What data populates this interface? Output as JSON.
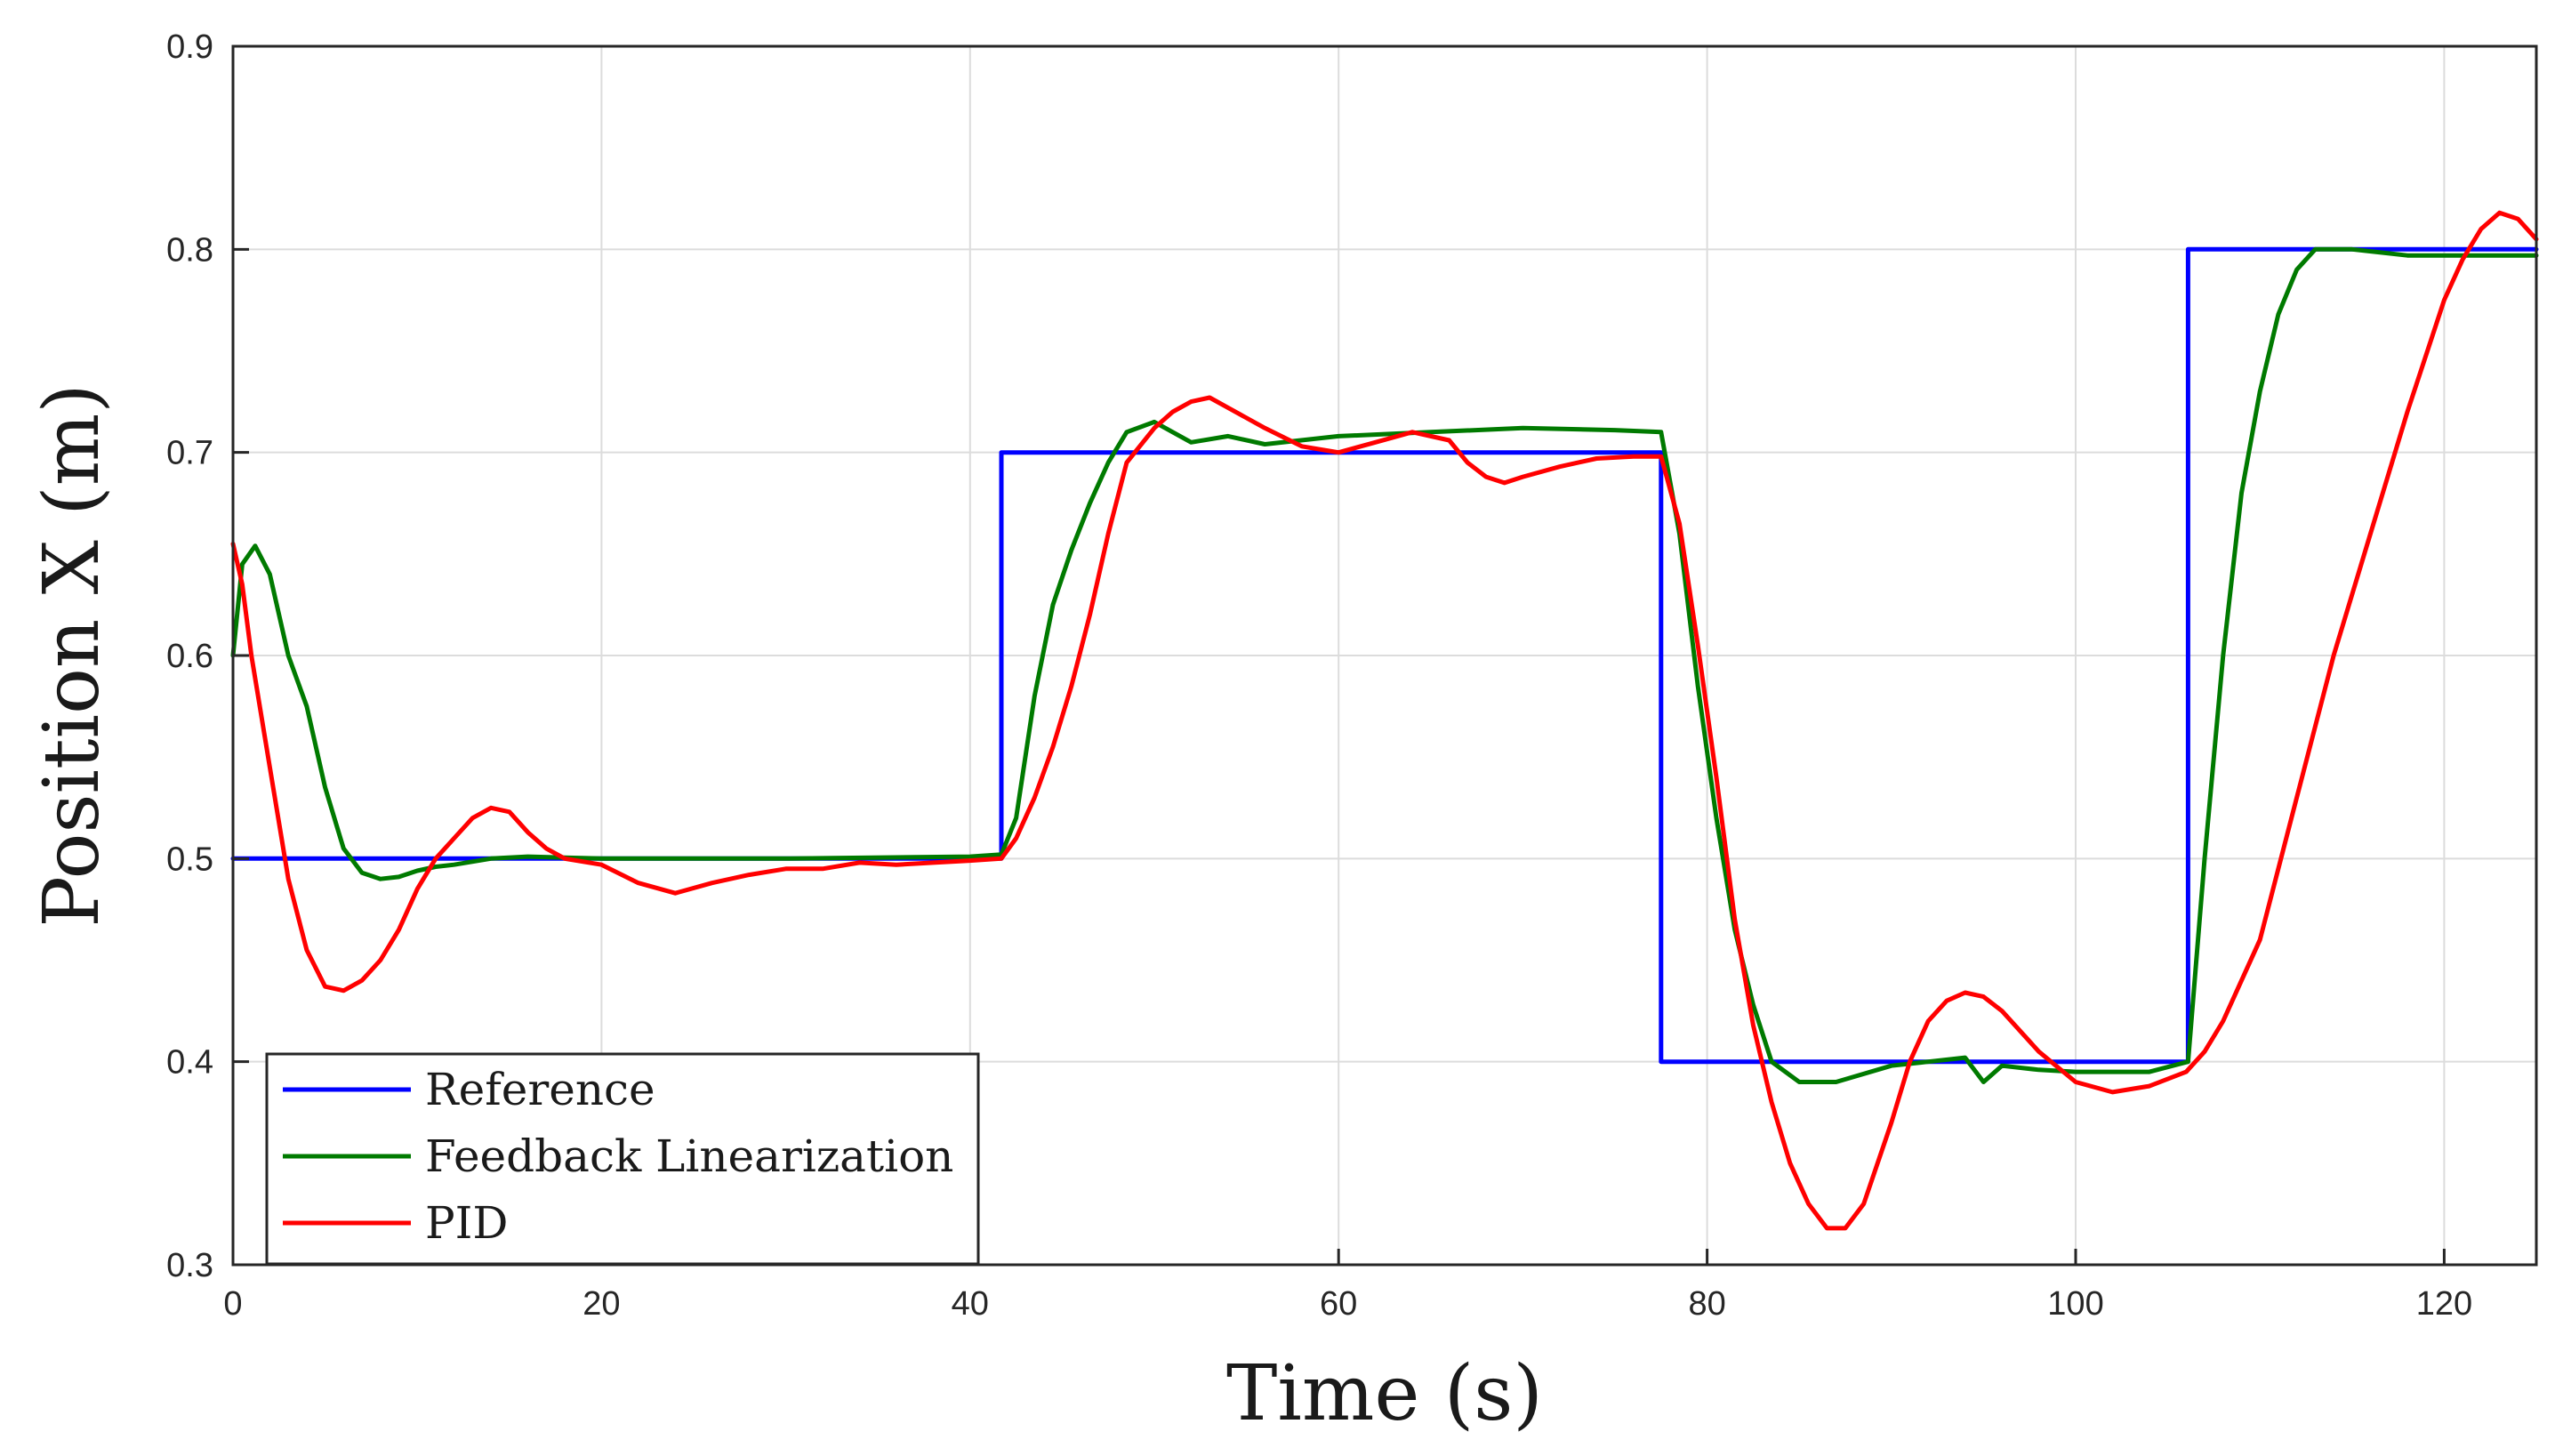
{
  "chart_data": {
    "type": "line",
    "xlabel": "Time (s)",
    "ylabel": "Position X (m)",
    "xlim": [
      0,
      125
    ],
    "ylim": [
      0.3,
      0.9
    ],
    "xticks": [
      0,
      20,
      40,
      60,
      80,
      100,
      120
    ],
    "yticks": [
      0.3,
      0.4,
      0.5,
      0.6,
      0.7,
      0.8,
      0.9
    ],
    "grid": true,
    "legend_position": "bottom-left",
    "colors": {
      "reference": "#0000ff",
      "feedback": "#007a00",
      "pid": "#ff0000",
      "axis": "#262626"
    },
    "series": [
      {
        "name": "Reference",
        "color": "#0000ff",
        "x": [
          0,
          41.7,
          41.7,
          77.5,
          77.5,
          106.1,
          106.1,
          125
        ],
        "y": [
          0.5,
          0.5,
          0.7,
          0.7,
          0.4,
          0.4,
          0.8,
          0.8
        ]
      },
      {
        "name": "Feedback Linearization",
        "color": "#007a00",
        "x": [
          0,
          0.5,
          1.2,
          2,
          3,
          4,
          5,
          6,
          7,
          8,
          9,
          10,
          11,
          12,
          14,
          16,
          20,
          30,
          40,
          41.7,
          42.5,
          43.5,
          44.5,
          45.5,
          46.5,
          47.5,
          48.5,
          50,
          52,
          54,
          56,
          60,
          65,
          70,
          75,
          77.5,
          78.5,
          79.5,
          80.5,
          81.5,
          82.5,
          83.5,
          85,
          87,
          90,
          92,
          94,
          95,
          96,
          98,
          100,
          104,
          106.1,
          107,
          108,
          109,
          110,
          111,
          112,
          113,
          115,
          118,
          120,
          122,
          125
        ],
        "y": [
          0.6,
          0.645,
          0.654,
          0.64,
          0.6,
          0.575,
          0.535,
          0.505,
          0.493,
          0.49,
          0.491,
          0.494,
          0.496,
          0.497,
          0.5,
          0.501,
          0.5,
          0.5,
          0.501,
          0.502,
          0.52,
          0.58,
          0.625,
          0.652,
          0.675,
          0.695,
          0.71,
          0.715,
          0.705,
          0.708,
          0.704,
          0.708,
          0.71,
          0.712,
          0.711,
          0.71,
          0.66,
          0.585,
          0.52,
          0.465,
          0.428,
          0.4,
          0.39,
          0.39,
          0.398,
          0.4,
          0.402,
          0.39,
          0.398,
          0.396,
          0.395,
          0.395,
          0.4,
          0.5,
          0.6,
          0.68,
          0.73,
          0.768,
          0.79,
          0.8,
          0.8,
          0.797,
          0.797,
          0.797,
          0.797
        ]
      },
      {
        "name": "PID",
        "color": "#ff0000",
        "x": [
          0,
          0.5,
          1,
          2,
          3,
          4,
          5,
          6,
          7,
          8,
          9,
          10,
          11,
          12,
          13,
          14,
          15,
          16,
          17,
          18,
          20,
          22,
          24,
          26,
          28,
          30,
          32,
          34,
          36,
          38,
          40,
          41.7,
          42.5,
          43.5,
          44.5,
          45.5,
          46.5,
          47.5,
          48.5,
          50,
          51,
          52,
          53,
          54,
          56,
          58,
          60,
          62,
          64,
          66,
          67,
          68,
          69,
          70,
          72,
          74,
          76,
          77.5,
          78.5,
          79.5,
          80.5,
          81.5,
          82.5,
          83.5,
          84.5,
          85.5,
          86.5,
          87.5,
          88.5,
          90,
          91,
          92,
          93,
          94,
          95,
          96,
          98,
          100,
          102,
          104,
          106,
          107,
          108,
          110,
          112,
          114,
          116,
          118,
          120,
          121,
          122,
          123,
          124,
          125
        ],
        "y": [
          0.655,
          0.635,
          0.6,
          0.545,
          0.49,
          0.455,
          0.437,
          0.435,
          0.44,
          0.45,
          0.465,
          0.485,
          0.5,
          0.51,
          0.52,
          0.525,
          0.523,
          0.513,
          0.505,
          0.5,
          0.497,
          0.488,
          0.483,
          0.488,
          0.492,
          0.495,
          0.495,
          0.498,
          0.497,
          0.498,
          0.499,
          0.5,
          0.51,
          0.53,
          0.555,
          0.585,
          0.62,
          0.66,
          0.695,
          0.712,
          0.72,
          0.725,
          0.727,
          0.722,
          0.712,
          0.703,
          0.7,
          0.705,
          0.71,
          0.706,
          0.695,
          0.688,
          0.685,
          0.688,
          0.693,
          0.697,
          0.698,
          0.698,
          0.665,
          0.605,
          0.54,
          0.47,
          0.418,
          0.38,
          0.35,
          0.33,
          0.318,
          0.318,
          0.33,
          0.37,
          0.4,
          0.42,
          0.43,
          0.434,
          0.432,
          0.425,
          0.405,
          0.39,
          0.385,
          0.388,
          0.395,
          0.405,
          0.42,
          0.46,
          0.53,
          0.6,
          0.66,
          0.72,
          0.775,
          0.795,
          0.81,
          0.818,
          0.815,
          0.805
        ]
      }
    ]
  }
}
